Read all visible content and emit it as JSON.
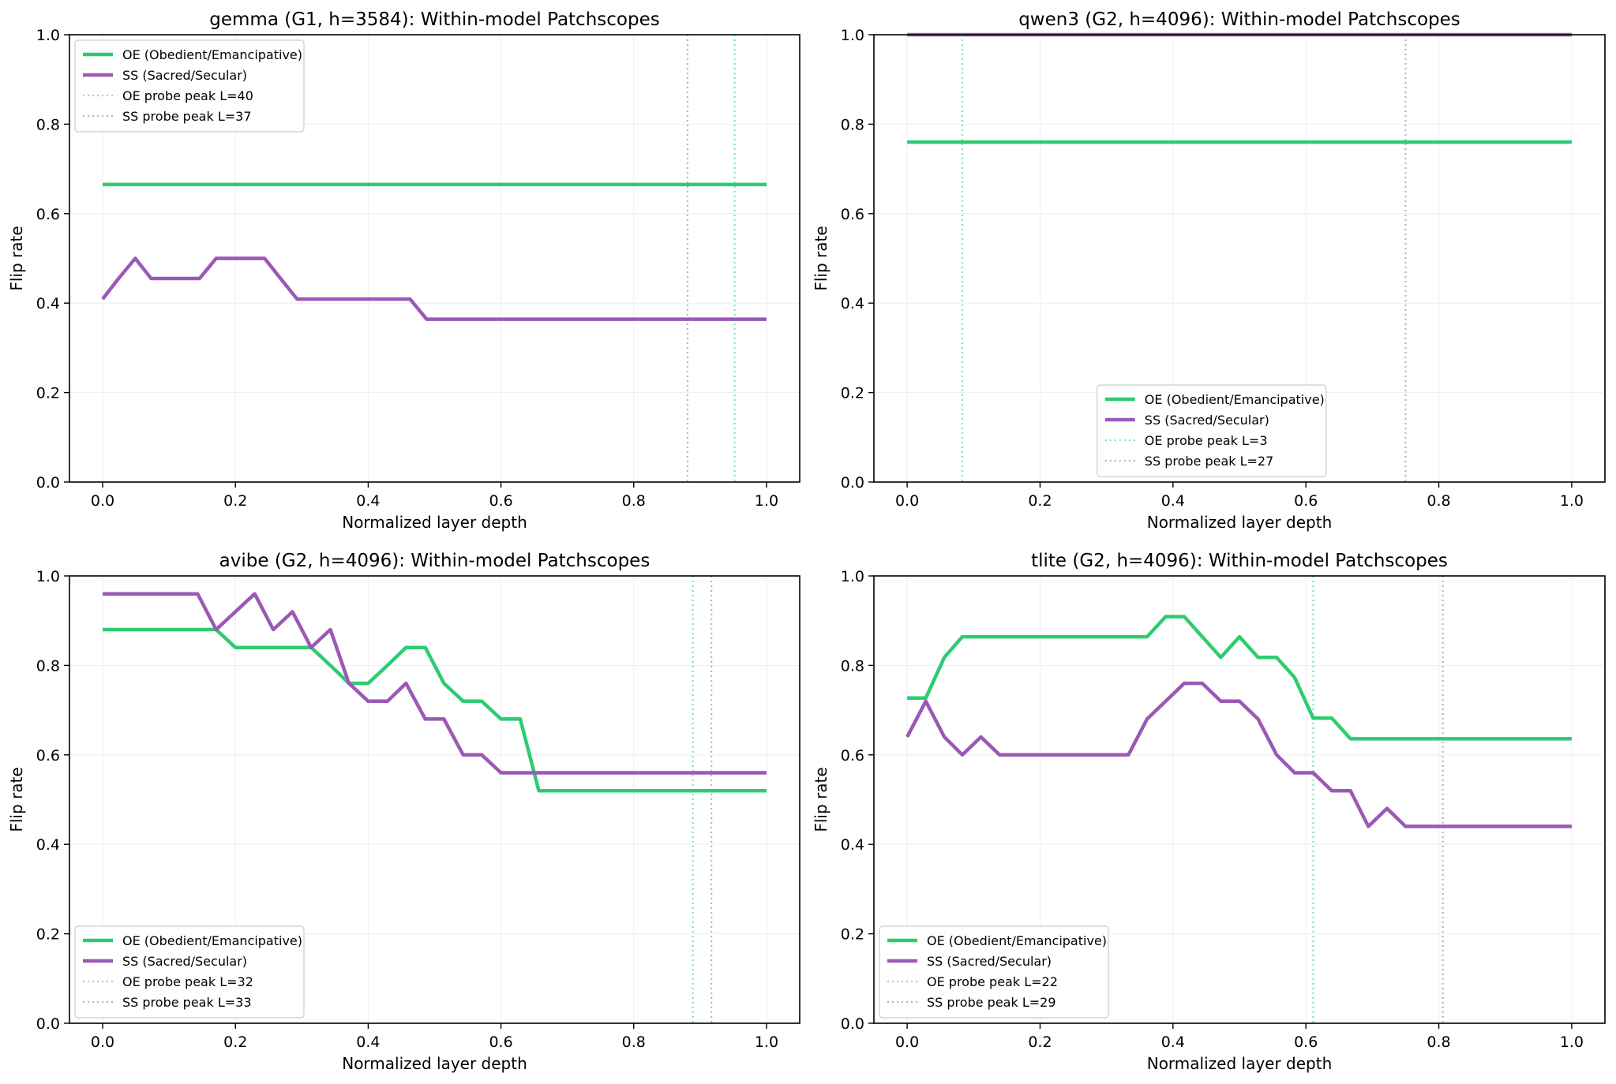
{
  "colors": {
    "oe": "#2ecc71",
    "ss": "#9b59b6",
    "oe_peak": "#7fe3b8",
    "ss_peak": "#c9a6db",
    "grid": "#eeeeee"
  },
  "chart_data": [
    {
      "type": "line",
      "title": "gemma (G1, h=3584): Within-model Patchscopes",
      "xlabel": "Normalized layer depth",
      "ylabel": "Flip rate",
      "xlim": [
        -0.05,
        1.05
      ],
      "ylim": [
        0,
        1
      ],
      "xticks": [
        "0.0",
        "0.2",
        "0.4",
        "0.6",
        "0.8",
        "1.0"
      ],
      "yticks": [
        "0.0",
        "0.2",
        "0.4",
        "0.6",
        "0.8",
        "1.0"
      ],
      "grid": true,
      "legend_position": "upper-left",
      "series": [
        {
          "name": "OE (Obedient/Emancipative)",
          "x": [
            0,
            1
          ],
          "values": [
            0.665,
            0.665
          ]
        },
        {
          "name": "SS (Sacred/Secular)",
          "x": [
            0,
            0.024,
            0.049,
            0.073,
            0.098,
            0.122,
            0.146,
            0.171,
            0.195,
            0.22,
            0.244,
            0.268,
            0.293,
            0.317,
            0.341,
            0.366,
            0.39,
            0.415,
            0.439,
            0.463,
            0.488,
            0.512,
            0.537,
            0.561,
            0.585,
            0.61,
            0.634,
            0.659,
            0.683,
            0.707,
            0.732,
            0.756,
            0.78,
            0.805,
            0.829,
            0.854,
            0.878,
            0.902,
            0.927,
            0.951,
            0.976,
            1.0
          ],
          "values": [
            0.409,
            0.455,
            0.5,
            0.455,
            0.455,
            0.455,
            0.455,
            0.5,
            0.5,
            0.5,
            0.5,
            0.455,
            0.409,
            0.409,
            0.409,
            0.409,
            0.409,
            0.409,
            0.409,
            0.409,
            0.364,
            0.364,
            0.364,
            0.364,
            0.364,
            0.364,
            0.364,
            0.364,
            0.364,
            0.364,
            0.364,
            0.364,
            0.364,
            0.364,
            0.364,
            0.364,
            0.364,
            0.364,
            0.364,
            0.364,
            0.364,
            0.364
          ]
        }
      ],
      "peaks": [
        {
          "name": "OE probe peak L=40",
          "x": 0.952
        },
        {
          "name": "SS probe peak L=37",
          "x": 0.881
        }
      ]
    },
    {
      "type": "line",
      "title": "qwen3 (G2, h=4096): Within-model Patchscopes",
      "xlabel": "Normalized layer depth",
      "ylabel": "Flip rate",
      "xlim": [
        -0.05,
        1.05
      ],
      "ylim": [
        0,
        1
      ],
      "xticks": [
        "0.0",
        "0.2",
        "0.4",
        "0.6",
        "0.8",
        "1.0"
      ],
      "yticks": [
        "0.0",
        "0.2",
        "0.4",
        "0.6",
        "0.8",
        "1.0"
      ],
      "grid": true,
      "legend_position": "lower-center",
      "series": [
        {
          "name": "OE (Obedient/Emancipative)",
          "x": [
            0,
            1
          ],
          "values": [
            0.76,
            0.76
          ]
        },
        {
          "name": "SS (Sacred/Secular)",
          "x": [
            0,
            1
          ],
          "values": [
            1.0,
            1.0
          ]
        }
      ],
      "peaks": [
        {
          "name": "OE probe peak L=3",
          "x": 0.083
        },
        {
          "name": "SS probe peak L=27",
          "x": 0.75
        }
      ]
    },
    {
      "type": "line",
      "title": "avibe (G2, h=4096): Within-model Patchscopes",
      "xlabel": "Normalized layer depth",
      "ylabel": "Flip rate",
      "xlim": [
        -0.05,
        1.05
      ],
      "ylim": [
        0,
        1
      ],
      "xticks": [
        "0.0",
        "0.2",
        "0.4",
        "0.6",
        "0.8",
        "1.0"
      ],
      "yticks": [
        "0.0",
        "0.2",
        "0.4",
        "0.6",
        "0.8",
        "1.0"
      ],
      "grid": true,
      "legend_position": "lower-left",
      "series": [
        {
          "name": "OE (Obedient/Emancipative)",
          "x": [
            0,
            0.029,
            0.057,
            0.086,
            0.114,
            0.143,
            0.171,
            0.2,
            0.229,
            0.257,
            0.286,
            0.314,
            0.343,
            0.371,
            0.4,
            0.429,
            0.457,
            0.486,
            0.514,
            0.543,
            0.571,
            0.6,
            0.629,
            0.657,
            0.686,
            0.714,
            0.743,
            0.771,
            0.8,
            0.829,
            0.857,
            0.886,
            0.914,
            0.943,
            0.971,
            1.0
          ],
          "values": [
            0.88,
            0.88,
            0.88,
            0.88,
            0.88,
            0.88,
            0.88,
            0.84,
            0.84,
            0.84,
            0.84,
            0.84,
            0.8,
            0.76,
            0.76,
            0.8,
            0.84,
            0.84,
            0.76,
            0.72,
            0.72,
            0.68,
            0.68,
            0.52,
            0.52,
            0.52,
            0.52,
            0.52,
            0.52,
            0.52,
            0.52,
            0.52,
            0.52,
            0.52,
            0.52,
            0.52
          ]
        },
        {
          "name": "SS (Sacred/Secular)",
          "x": [
            0,
            0.029,
            0.057,
            0.086,
            0.114,
            0.143,
            0.171,
            0.2,
            0.229,
            0.257,
            0.286,
            0.314,
            0.343,
            0.371,
            0.4,
            0.429,
            0.457,
            0.486,
            0.514,
            0.543,
            0.571,
            0.6,
            0.629,
            0.657,
            0.686,
            0.714,
            0.743,
            0.771,
            0.8,
            0.829,
            0.857,
            0.886,
            0.914,
            0.943,
            0.971,
            1.0
          ],
          "values": [
            0.96,
            0.96,
            0.96,
            0.96,
            0.96,
            0.96,
            0.88,
            0.92,
            0.96,
            0.88,
            0.92,
            0.84,
            0.88,
            0.76,
            0.72,
            0.72,
            0.76,
            0.68,
            0.68,
            0.6,
            0.6,
            0.56,
            0.56,
            0.56,
            0.56,
            0.56,
            0.56,
            0.56,
            0.56,
            0.56,
            0.56,
            0.56,
            0.56,
            0.56,
            0.56,
            0.56
          ]
        }
      ],
      "peaks": [
        {
          "name": "OE probe peak L=32",
          "x": 0.889
        },
        {
          "name": "SS probe peak L=33",
          "x": 0.917
        }
      ]
    },
    {
      "type": "line",
      "title": "tlite (G2, h=4096): Within-model Patchscopes",
      "xlabel": "Normalized layer depth",
      "ylabel": "Flip rate",
      "xlim": [
        -0.05,
        1.05
      ],
      "ylim": [
        0,
        1
      ],
      "xticks": [
        "0.0",
        "0.2",
        "0.4",
        "0.6",
        "0.8",
        "1.0"
      ],
      "yticks": [
        "0.0",
        "0.2",
        "0.4",
        "0.6",
        "0.8",
        "1.0"
      ],
      "grid": true,
      "legend_position": "lower-left",
      "series": [
        {
          "name": "OE (Obedient/Emancipative)",
          "x": [
            0,
            0.028,
            0.056,
            0.083,
            0.111,
            0.139,
            0.167,
            0.194,
            0.222,
            0.25,
            0.278,
            0.306,
            0.333,
            0.361,
            0.389,
            0.417,
            0.444,
            0.472,
            0.5,
            0.528,
            0.556,
            0.583,
            0.611,
            0.639,
            0.667,
            0.694,
            0.722,
            0.75,
            0.778,
            0.806,
            0.833,
            0.861,
            0.889,
            0.917,
            0.944,
            0.972,
            1.0
          ],
          "values": [
            0.727,
            0.727,
            0.818,
            0.864,
            0.864,
            0.864,
            0.864,
            0.864,
            0.864,
            0.864,
            0.864,
            0.864,
            0.864,
            0.864,
            0.909,
            0.909,
            0.864,
            0.818,
            0.864,
            0.818,
            0.818,
            0.773,
            0.682,
            0.682,
            0.636,
            0.636,
            0.636,
            0.636,
            0.636,
            0.636,
            0.636,
            0.636,
            0.636,
            0.636,
            0.636,
            0.636,
            0.636
          ]
        },
        {
          "name": "SS (Sacred/Secular)",
          "x": [
            0,
            0.028,
            0.056,
            0.083,
            0.111,
            0.139,
            0.167,
            0.194,
            0.222,
            0.25,
            0.278,
            0.306,
            0.333,
            0.361,
            0.389,
            0.417,
            0.444,
            0.472,
            0.5,
            0.528,
            0.556,
            0.583,
            0.611,
            0.639,
            0.667,
            0.694,
            0.722,
            0.75,
            0.778,
            0.806,
            0.833,
            0.861,
            0.889,
            0.917,
            0.944,
            0.972,
            1.0
          ],
          "values": [
            0.64,
            0.72,
            0.64,
            0.6,
            0.64,
            0.6,
            0.6,
            0.6,
            0.6,
            0.6,
            0.6,
            0.6,
            0.6,
            0.68,
            0.72,
            0.76,
            0.76,
            0.72,
            0.72,
            0.68,
            0.6,
            0.56,
            0.56,
            0.52,
            0.52,
            0.44,
            0.48,
            0.44,
            0.44,
            0.44,
            0.44,
            0.44,
            0.44,
            0.44,
            0.44,
            0.44,
            0.44
          ]
        }
      ],
      "peaks": [
        {
          "name": "OE probe peak L=22",
          "x": 0.611
        },
        {
          "name": "SS probe peak L=29",
          "x": 0.806
        }
      ]
    }
  ]
}
